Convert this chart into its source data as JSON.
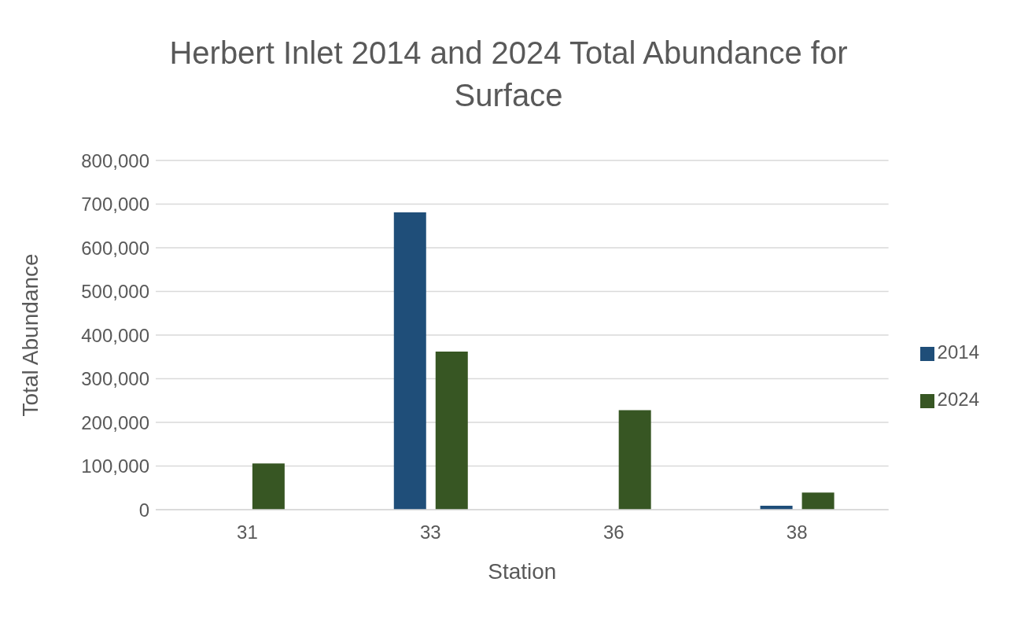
{
  "chart_data": {
    "type": "bar",
    "title": "Herbert Inlet 2014 and 2024 Total Abundance for Surface",
    "xlabel": "Station",
    "ylabel": "Total Abundance",
    "categories": [
      "31",
      "33",
      "36",
      "38"
    ],
    "series": [
      {
        "name": "2014",
        "color": "#1f4e79",
        "values": [
          0,
          681000,
          0,
          9000
        ]
      },
      {
        "name": "2024",
        "color": "#375623",
        "values": [
          106000,
          362000,
          228000,
          39000
        ]
      }
    ],
    "ylim": [
      0,
      800000
    ],
    "yticks": [
      0,
      {
        "value": 100000,
        "label": "100,000"
      },
      {
        "value": 200000,
        "label": "200,000"
      },
      {
        "value": 300000,
        "label": "300,000"
      },
      {
        "value": 400000,
        "label": "400,000"
      },
      {
        "value": 500000,
        "label": "500,000"
      },
      {
        "value": 600000,
        "label": "600,000"
      },
      {
        "value": 700000,
        "label": "700,000"
      },
      {
        "value": 800000,
        "label": "800,000"
      }
    ],
    "grid": "y",
    "legend": "right"
  }
}
